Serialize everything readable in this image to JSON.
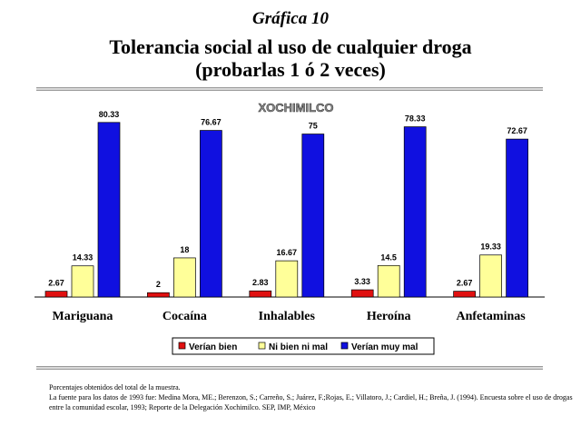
{
  "page_label": "Gráfica 10",
  "title_line1": "Tolerancia social al uso de cualquier droga",
  "title_line2": "(probarlas 1 ó 2 veces)",
  "colors": {
    "series1": "#e01010",
    "series2": "#ffff99",
    "series3": "#1010e0"
  },
  "chart_data": {
    "type": "bar",
    "subtitle": "XOCHIMILCO",
    "categories": [
      "Mariguana",
      "Cocaína",
      "Inhalables",
      "Heroína",
      "Anfetaminas"
    ],
    "series": [
      {
        "name": "Verían bien",
        "values": [
          2.67,
          2,
          2.83,
          3.33,
          2.67
        ]
      },
      {
        "name": "Ni bien ni mal",
        "values": [
          14.33,
          18,
          16.67,
          14.5,
          19.33
        ]
      },
      {
        "name": "Verían muy mal",
        "values": [
          80.33,
          76.67,
          75,
          78.33,
          72.67
        ]
      }
    ],
    "value_labels": [
      [
        "2.67",
        "2",
        "2.83",
        "3.33",
        "2.67"
      ],
      [
        "14.33",
        "18",
        "16.67",
        "14.5",
        "19.33"
      ],
      [
        "80.33",
        "76.67",
        "75",
        "78.33",
        "72.67"
      ]
    ],
    "ylim": [
      0,
      84
    ],
    "grid": false,
    "legend": "bottom"
  },
  "footnote_line1": "Porcentajes obtenidos del total de la muestra.",
  "footnote_line2": "La fuente para los datos de 1993 fue: Medina Mora, ME.; Berenzon, S.; Carreño, S.; Juárez, F.;Rojas, E.; Villatoro, J.; Cardiel, H.; Breña, J. (1994). Encuesta sobre el uso de drogas entre la comunidad escolar, 1993; Reporte de la Delegación Xochimilco. SEP, IMP, México"
}
